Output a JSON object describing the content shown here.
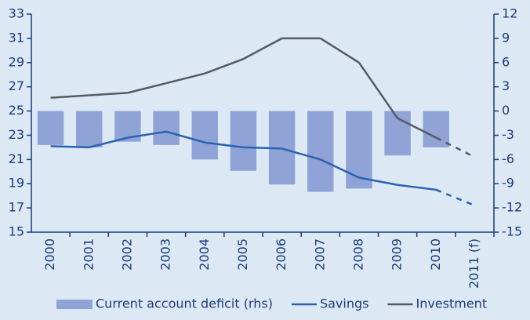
{
  "chart_data": {
    "type": "combo",
    "categories": [
      "2000",
      "2001",
      "2002",
      "2003",
      "2004",
      "2005",
      "2006",
      "2007",
      "2008",
      "2009",
      "2010",
      "2011 (f)"
    ],
    "series": [
      {
        "name": "Current account deficit (rhs)",
        "type": "bar",
        "axis": "y2",
        "color": "#8fa3d6",
        "values": [
          -4.2,
          -4.5,
          -3.8,
          -4.2,
          -6.0,
          -7.4,
          -9.1,
          -10.0,
          -9.6,
          -5.5,
          -4.5,
          null
        ]
      },
      {
        "name": "Savings",
        "type": "line",
        "color": "#2a62b0",
        "values": [
          22.1,
          22.0,
          22.8,
          23.3,
          22.4,
          22.0,
          21.9,
          21.0,
          19.5,
          18.9,
          18.5,
          17.2
        ]
      },
      {
        "name": "Investment",
        "type": "line",
        "color": "#555a63",
        "values": [
          26.1,
          26.3,
          26.5,
          27.3,
          28.1,
          29.3,
          31.0,
          31.0,
          29.0,
          24.4,
          22.8,
          21.2
        ]
      }
    ],
    "ylim": [
      15,
      33
    ],
    "yticks": [
      15,
      17,
      19,
      21,
      23,
      25,
      27,
      29,
      31,
      33
    ],
    "y2lim": [
      -15,
      12
    ],
    "y2ticks": [
      -15,
      -12,
      -9,
      -6,
      -3,
      0,
      3,
      6,
      9,
      12
    ],
    "dash_last_segment": true,
    "legend": "bottom"
  }
}
